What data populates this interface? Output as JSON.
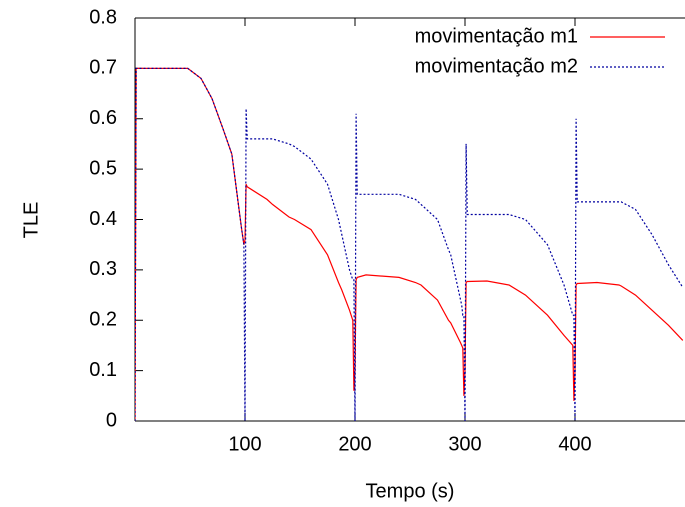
{
  "chart_data": {
    "type": "line",
    "xlabel": "Tempo (s)",
    "ylabel": "TLE",
    "x": [
      0,
      1,
      48,
      60,
      70,
      80,
      88,
      97,
      99,
      100,
      101,
      102,
      120,
      125,
      140,
      145,
      160,
      175,
      185,
      188,
      195,
      198,
      199,
      200,
      201,
      202,
      210,
      240,
      255,
      260,
      275,
      285,
      287,
      296,
      297,
      298,
      299,
      300,
      301,
      302,
      320,
      340,
      355,
      375,
      390,
      398,
      399,
      400,
      401,
      402,
      420,
      440,
      442,
      455,
      470,
      485,
      498
    ],
    "series": [
      {
        "name": "movimentação m1",
        "color": "#ff0000",
        "dash": "solid",
        "values": [
          0,
          0.7,
          0.7,
          0.68,
          0.64,
          0.58,
          0.53,
          0.38,
          0.35,
          0.36,
          0.47,
          0.465,
          0.44,
          0.43,
          0.405,
          0.4,
          0.38,
          0.33,
          0.275,
          0.26,
          0.22,
          0.2,
          0.06,
          0.1,
          0.28,
          0.285,
          0.29,
          0.285,
          0.275,
          0.27,
          0.24,
          0.2,
          0.195,
          0.155,
          0.15,
          0.145,
          0.05,
          0.1,
          0.275,
          0.277,
          0.278,
          0.27,
          0.25,
          0.21,
          0.17,
          0.15,
          0.04,
          0.1,
          0.27,
          0.273,
          0.275,
          0.27,
          0.268,
          0.25,
          0.22,
          0.19,
          0.16
        ]
      },
      {
        "name": "movimentação m2",
        "color": "#0000a0",
        "dash": "dotted",
        "values": [
          0,
          0.7,
          0.7,
          0.68,
          0.64,
          0.58,
          0.53,
          0.38,
          0.35,
          0,
          0.62,
          0.56,
          0.56,
          0.56,
          0.55,
          0.545,
          0.52,
          0.47,
          0.4,
          0.37,
          0.3,
          0.28,
          0.28,
          0,
          0.61,
          0.45,
          0.45,
          0.45,
          0.44,
          0.43,
          0.4,
          0.34,
          0.33,
          0.24,
          0.23,
          0.21,
          0.21,
          0,
          0.55,
          0.41,
          0.41,
          0.41,
          0.4,
          0.35,
          0.27,
          0.21,
          0.21,
          0,
          0.6,
          0.435,
          0.435,
          0.435,
          0.435,
          0.42,
          0.37,
          0.31,
          0.265
        ]
      }
    ],
    "xlim": [
      0,
      500
    ],
    "xticks": [
      100,
      200,
      300,
      400
    ],
    "ylim": [
      0,
      0.8
    ],
    "yticks": [
      0,
      0.1,
      0.2,
      0.3,
      0.4,
      0.5,
      0.6,
      0.7,
      0.8
    ],
    "legend": "top-right"
  }
}
